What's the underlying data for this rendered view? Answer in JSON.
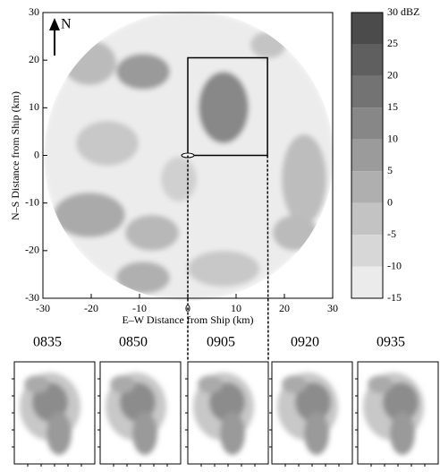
{
  "chart_data": {
    "type": "radar",
    "x_label": "E–W Distance from Ship (km)",
    "y_label": "N–S Distance from Ship (km)",
    "north_label": "N",
    "xlim": [
      -30,
      30
    ],
    "ylim": [
      -30,
      30
    ],
    "xticks": [
      -30,
      -20,
      -10,
      0,
      10,
      20,
      30
    ],
    "yticks": [
      -30,
      -20,
      -10,
      0,
      10,
      20,
      30
    ],
    "colorbar": {
      "lim": [
        -15,
        30
      ],
      "ticks": [
        {
          "value": 30,
          "label": "30 dBZ"
        },
        25,
        20,
        15,
        10,
        5,
        0,
        -5,
        -10,
        -15
      ]
    },
    "zoom_box": {
      "x": [
        0,
        16.5
      ],
      "y": [
        0,
        20.5
      ]
    },
    "panels": [
      "0835",
      "0850",
      "0905",
      "0920",
      "0935"
    ]
  }
}
